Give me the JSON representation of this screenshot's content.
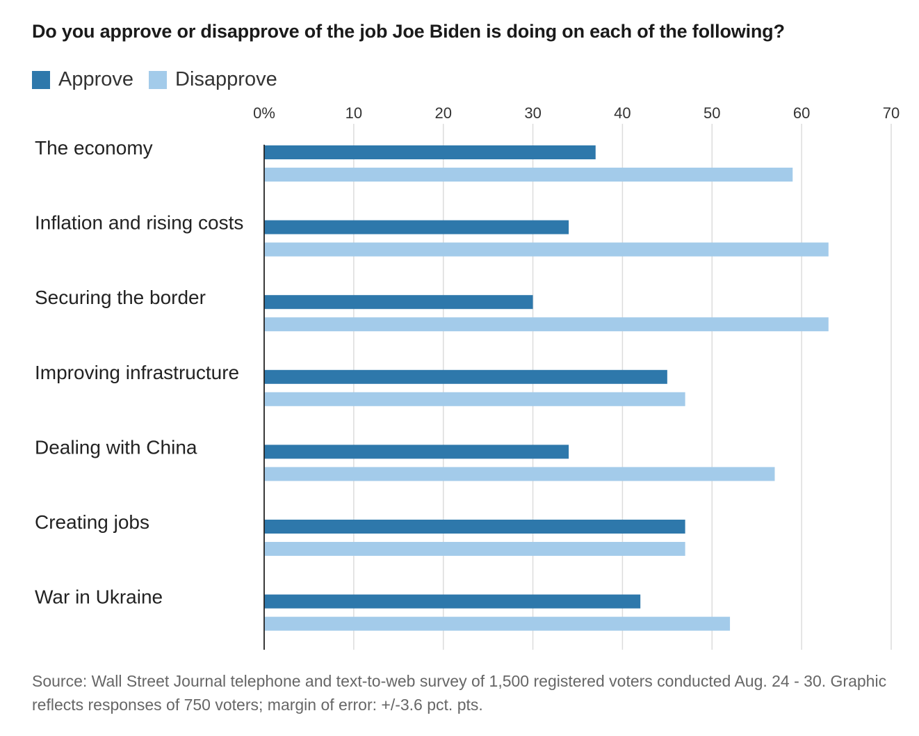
{
  "title": "Do you approve or disapprove of the job Joe Biden is doing on each of the following?",
  "legend": {
    "approve": "Approve",
    "disapprove": "Disapprove"
  },
  "colors": {
    "approve": "#2e78ab",
    "disapprove": "#a3cbea",
    "grid": "#dcdcdc",
    "axis": "#222222"
  },
  "source": "Source: Wall Street Journal telephone and text-to-web survey of 1,500 registered voters conducted Aug. 24 - 30. Graphic reflects responses of 750 voters; margin of error: +/-3.6 pct. pts.",
  "chart_data": {
    "type": "bar",
    "orientation": "horizontal",
    "title": "Do you approve or disapprove of the job Joe Biden is doing on each of the following?",
    "categories": [
      "The economy",
      "Inflation and rising costs",
      "Securing the border",
      "Improving infrastructure",
      "Dealing with China",
      "Creating jobs",
      "War in Ukraine"
    ],
    "series": [
      {
        "name": "Approve",
        "values": [
          37,
          34,
          30,
          45,
          34,
          47,
          42
        ]
      },
      {
        "name": "Disapprove",
        "values": [
          59,
          63,
          63,
          47,
          57,
          47,
          52
        ]
      }
    ],
    "xlim": [
      0,
      70
    ],
    "xticks": [
      0,
      10,
      20,
      30,
      40,
      50,
      60,
      70
    ],
    "xtick_labels": [
      "0%",
      "10",
      "20",
      "30",
      "40",
      "50",
      "60",
      "70"
    ],
    "grid": true,
    "legend_position": "top-left"
  }
}
